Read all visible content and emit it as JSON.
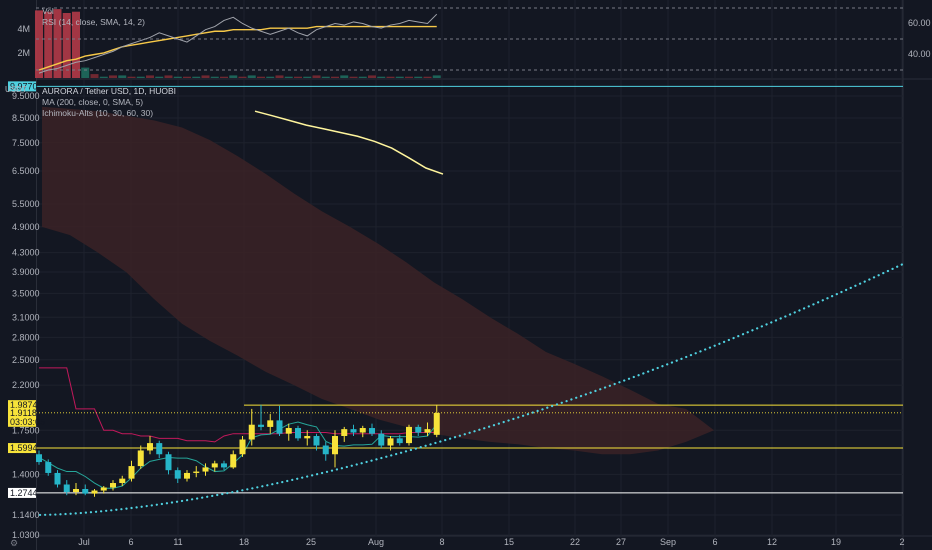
{
  "theme": {
    "background": "#131722",
    "grid": "#1e222d",
    "text": "#b2b5be",
    "up_color": "#f7e33a",
    "down_color": "#26b5c8",
    "cloud_color": "#3b2226",
    "forecast_color": "#4fd1e0",
    "ma_color": "#fff59d",
    "kijun_color": "#c2185b",
    "tenkan_color": "#26a69a"
  },
  "top_pane": {
    "legend": {
      "vol": "Vol",
      "rsi": "RSI (14, close, SMA, 14, 2)"
    },
    "left_axis": [
      "4M",
      "2M"
    ],
    "right_axis": [
      "60.00",
      "40.00"
    ]
  },
  "main_pane": {
    "currency_label": "USDT",
    "legend": {
      "title": "AURORA / Tether USD, 1D, HUOBI",
      "ma": "MA (200, close, 0, SMA, 5)",
      "ichimoku": "Ichimoku-Alts (10, 30, 60, 30)"
    },
    "price_axis": [
      "9.5000",
      "8.5000",
      "7.5000",
      "6.5000",
      "5.5000",
      "4.9000",
      "4.3000",
      "3.9000",
      "3.5000",
      "3.1000",
      "2.8000",
      "2.5000",
      "2.2000",
      "1.7500",
      "1.4000",
      "1.1400",
      "1.0300"
    ],
    "price_tags": [
      {
        "text": "9.9770",
        "color": "#4fd1e0",
        "text_color": "#131722"
      },
      {
        "text": "1.9874",
        "color": "#f7e33a",
        "text_color": "#131722"
      },
      {
        "text": "1.9118",
        "color": "#f7e33a",
        "text_color": "#131722"
      },
      {
        "text": "03:03:05",
        "color": "#f7e33a",
        "text_color": "#131722"
      },
      {
        "text": "1.5994",
        "color": "#f7e33a",
        "text_color": "#131722"
      },
      {
        "text": "1.2744",
        "color": "#ffffff",
        "text_color": "#131722"
      }
    ]
  },
  "time_axis": [
    "Jul",
    "6",
    "11",
    "18",
    "25",
    "Aug",
    "8",
    "15",
    "22",
    "27",
    "Sep",
    "6",
    "12",
    "19",
    "2"
  ],
  "chart_data": {
    "type": "candlestick",
    "scale": "log",
    "ylim": [
      1.03,
      10.2
    ],
    "candles_ohlc": [
      [
        1.55,
        1.58,
        1.47,
        1.49
      ],
      [
        1.49,
        1.51,
        1.39,
        1.41
      ],
      [
        1.41,
        1.43,
        1.31,
        1.33
      ],
      [
        1.33,
        1.36,
        1.26,
        1.28
      ],
      [
        1.28,
        1.34,
        1.26,
        1.3
      ],
      [
        1.3,
        1.33,
        1.26,
        1.27
      ],
      [
        1.27,
        1.3,
        1.25,
        1.29
      ],
      [
        1.29,
        1.32,
        1.27,
        1.31
      ],
      [
        1.31,
        1.36,
        1.29,
        1.34
      ],
      [
        1.34,
        1.39,
        1.32,
        1.37
      ],
      [
        1.37,
        1.5,
        1.35,
        1.46
      ],
      [
        1.46,
        1.62,
        1.44,
        1.58
      ],
      [
        1.58,
        1.7,
        1.55,
        1.64
      ],
      [
        1.64,
        1.66,
        1.52,
        1.55
      ],
      [
        1.55,
        1.57,
        1.4,
        1.43
      ],
      [
        1.43,
        1.45,
        1.34,
        1.37
      ],
      [
        1.37,
        1.43,
        1.35,
        1.41
      ],
      [
        1.41,
        1.46,
        1.38,
        1.42
      ],
      [
        1.42,
        1.48,
        1.39,
        1.45
      ],
      [
        1.45,
        1.5,
        1.42,
        1.48
      ],
      [
        1.48,
        1.5,
        1.43,
        1.45
      ],
      [
        1.45,
        1.58,
        1.44,
        1.55
      ],
      [
        1.55,
        1.7,
        1.53,
        1.67
      ],
      [
        1.67,
        1.95,
        1.62,
        1.8
      ],
      [
        1.8,
        1.99,
        1.75,
        1.78
      ],
      [
        1.78,
        1.9,
        1.72,
        1.84
      ],
      [
        1.84,
        1.98,
        1.7,
        1.72
      ],
      [
        1.72,
        1.81,
        1.66,
        1.77
      ],
      [
        1.77,
        1.79,
        1.66,
        1.68
      ],
      [
        1.68,
        1.75,
        1.62,
        1.7
      ],
      [
        1.7,
        1.72,
        1.58,
        1.62
      ],
      [
        1.62,
        1.65,
        1.5,
        1.55
      ],
      [
        1.55,
        1.75,
        1.45,
        1.7
      ],
      [
        1.7,
        1.78,
        1.65,
        1.76
      ],
      [
        1.76,
        1.8,
        1.7,
        1.73
      ],
      [
        1.73,
        1.79,
        1.69,
        1.77
      ],
      [
        1.77,
        1.81,
        1.7,
        1.72
      ],
      [
        1.72,
        1.75,
        1.6,
        1.62
      ],
      [
        1.62,
        1.7,
        1.58,
        1.68
      ],
      [
        1.68,
        1.71,
        1.62,
        1.64
      ],
      [
        1.64,
        1.8,
        1.62,
        1.78
      ],
      [
        1.78,
        1.8,
        1.7,
        1.73
      ],
      [
        1.73,
        1.82,
        1.7,
        1.76
      ],
      [
        1.71,
        1.99,
        1.69,
        1.91
      ]
    ],
    "ma200": [
      8.8,
      8.6,
      8.4,
      8.2,
      8.05,
      7.9,
      7.75,
      7.55,
      7.3,
      6.95,
      6.6,
      6.4
    ],
    "forecast_curve": {
      "start": 1.14,
      "end": 4.05
    },
    "kijun": [
      2.4,
      2.4,
      2.4,
      2.4,
      1.95,
      1.95,
      1.95,
      1.75,
      1.75,
      1.72,
      1.72,
      1.7,
      1.7,
      1.68,
      1.68,
      1.68,
      1.66,
      1.66,
      1.66,
      1.65,
      1.7,
      1.72,
      1.72,
      1.72,
      1.72,
      1.72,
      1.72,
      1.73,
      1.73,
      1.73,
      1.73,
      1.73,
      1.72,
      1.72,
      1.72,
      1.72,
      1.72,
      1.72,
      1.72,
      1.72,
      1.73,
      1.73,
      1.73,
      1.73
    ],
    "cloud_upper": [
      9.0,
      8.9,
      8.8,
      8.6,
      8.4,
      8.1,
      7.6,
      7.0,
      6.4,
      5.8,
      5.3,
      4.9,
      4.5,
      4.1,
      3.7,
      3.4,
      3.1,
      2.85,
      2.6,
      2.45,
      2.3,
      2.15,
      2.0,
      1.95,
      1.75
    ],
    "cloud_lower": [
      4.9,
      4.7,
      4.3,
      3.9,
      3.4,
      3.0,
      2.75,
      2.55,
      2.35,
      2.2,
      2.05,
      1.95,
      1.85,
      1.78,
      1.72,
      1.68,
      1.65,
      1.63,
      1.6,
      1.58,
      1.55,
      1.55,
      1.58,
      1.65,
      1.75
    ],
    "volume_m": [
      5.2,
      5.1,
      5.3,
      5.0,
      5.1,
      0.8,
      0.3,
      0.1,
      0.2,
      0.2,
      0.1,
      0.1,
      0.2,
      0.1,
      0.2,
      0.1,
      0.1,
      0.1,
      0.2,
      0.1,
      0.1,
      0.2,
      0.1,
      0.2,
      0.1,
      0.1,
      0.2,
      0.1,
      0.1,
      0.1,
      0.2,
      0.1,
      0.1,
      0.2,
      0.1,
      0.1,
      0.2,
      0.1,
      0.1,
      0.1,
      0.1,
      0.1,
      0.1,
      0.2
    ],
    "rsi": [
      28,
      30,
      31,
      33,
      35,
      36,
      38,
      40,
      42,
      45,
      47,
      49,
      51,
      54,
      52,
      50,
      48,
      52,
      56,
      58,
      62,
      64,
      60,
      57,
      55,
      53,
      55,
      57,
      54,
      52,
      56,
      58,
      60,
      59,
      61,
      60,
      58,
      57,
      59,
      60,
      62,
      61,
      60,
      66
    ],
    "rsi_ma": [
      30,
      32,
      34,
      36,
      37,
      39,
      40,
      41,
      43,
      45,
      46,
      47,
      48,
      49,
      50,
      51,
      52,
      53,
      54,
      55,
      55,
      56,
      56,
      56,
      56,
      57,
      57,
      57,
      57,
      57,
      58,
      58,
      58,
      58,
      58,
      58,
      58,
      58,
      58,
      58,
      58,
      58,
      58,
      58
    ],
    "rsi_levels": [
      70,
      50,
      30
    ]
  }
}
